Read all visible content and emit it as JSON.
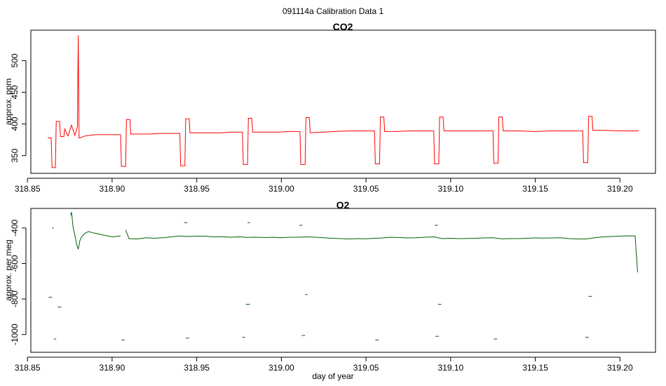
{
  "figure": {
    "title": "091114a   Calibration Data 1"
  },
  "chart_data": [
    {
      "type": "line",
      "title": "CO2",
      "xlabel": "",
      "ylabel": "approx. ppm",
      "xlim": [
        318.852,
        319.221
      ],
      "ylim": [
        322,
        548
      ],
      "xticks": [
        318.85,
        318.9,
        318.95,
        319.0,
        319.05,
        319.1,
        319.15,
        319.2
      ],
      "xtick_labels": [
        "318.85",
        "318.90",
        "318.95",
        "319.00",
        "319.05",
        "319.10",
        "319.15",
        "319.20"
      ],
      "yticks": [
        350,
        400,
        450,
        500
      ],
      "ytick_labels": [
        "350",
        "400",
        "450",
        "500"
      ],
      "grid": false,
      "color": "#ff0000",
      "x": [
        318.862,
        318.864,
        318.8645,
        318.8665,
        318.867,
        318.869,
        318.8695,
        318.8715,
        318.872,
        318.874,
        318.876,
        318.878,
        318.8795,
        318.88,
        318.8805,
        318.881,
        318.884,
        318.89,
        318.896,
        318.902,
        318.905,
        318.9055,
        318.908,
        318.9085,
        318.9105,
        318.911,
        318.916,
        318.922,
        318.928,
        318.934,
        318.94,
        318.9405,
        318.943,
        318.9435,
        318.9455,
        318.946,
        318.952,
        318.958,
        318.964,
        318.97,
        318.977,
        318.9775,
        318.98,
        318.9805,
        318.9825,
        318.983,
        318.99,
        318.998,
        319.005,
        319.011,
        319.0115,
        319.014,
        319.0145,
        319.0165,
        319.017,
        319.024,
        319.032,
        319.04,
        319.048,
        319.055,
        319.0555,
        319.058,
        319.0585,
        319.0605,
        319.061,
        319.068,
        319.076,
        319.084,
        319.09,
        319.0905,
        319.093,
        319.0935,
        319.0955,
        319.096,
        319.104,
        319.112,
        319.12,
        319.125,
        319.1255,
        319.128,
        319.1285,
        319.1305,
        319.131,
        319.14,
        319.15,
        319.16,
        319.17,
        319.178,
        319.1785,
        319.181,
        319.1815,
        319.1835,
        319.184,
        319.19,
        319.2,
        319.211
      ],
      "y": [
        378,
        378,
        331,
        331,
        404,
        404,
        380,
        380,
        392,
        381,
        398,
        382,
        395,
        540,
        378,
        378,
        381,
        383,
        383,
        383,
        383,
        333,
        333,
        407,
        407,
        384,
        384,
        384,
        385,
        385,
        385,
        334,
        334,
        408,
        408,
        386,
        386,
        386,
        386,
        387,
        387,
        336,
        336,
        409,
        409,
        387,
        387,
        387,
        388,
        388,
        336,
        336,
        410,
        410,
        386,
        387,
        388,
        389,
        389,
        389,
        337,
        337,
        411,
        411,
        388,
        388,
        389,
        389,
        389,
        337,
        337,
        411,
        411,
        389,
        389,
        389,
        389,
        389,
        338,
        338,
        411,
        411,
        389,
        389,
        388,
        389,
        389,
        389,
        339,
        339,
        412,
        412,
        390,
        390,
        389,
        389
      ]
    },
    {
      "type": "line",
      "title": "O2",
      "xlabel": "day of year",
      "ylabel": "approx. per meg",
      "xlim": [
        318.852,
        319.221
      ],
      "ylim": [
        -1100,
        -290
      ],
      "xticks": [
        318.85,
        318.9,
        318.95,
        319.0,
        319.05,
        319.1,
        319.15,
        319.2
      ],
      "xtick_labels": [
        "318.85",
        "318.90",
        "318.95",
        "319.00",
        "319.05",
        "319.10",
        "319.15",
        "319.20"
      ],
      "yticks": [
        -400,
        -600,
        -800,
        -1000
      ],
      "ytick_labels": [
        "-400",
        "-600",
        "-800",
        "-1000"
      ],
      "grid": false,
      "color": "#006400",
      "series": [
        {
          "x": [
            318.8755,
            318.876,
            318.877,
            318.878,
            318.879,
            318.88,
            318.881,
            318.882,
            318.884,
            318.886,
            318.888,
            318.89,
            318.895,
            318.9,
            318.905
          ],
          "y": [
            -330,
            -310,
            -400,
            -440,
            -490,
            -520,
            -470,
            -450,
            -430,
            -420,
            -425,
            -430,
            -440,
            -450,
            -445
          ]
        },
        {
          "x": [
            318.908,
            318.91,
            318.915,
            318.92,
            318.925,
            318.93,
            318.935,
            318.94,
            318.945,
            318.95,
            318.955,
            318.96,
            318.965,
            318.97,
            318.975,
            318.98,
            318.985,
            318.99,
            318.995,
            319.0,
            319.005,
            319.01,
            319.015,
            319.02,
            319.025,
            319.03,
            319.035,
            319.04,
            319.045,
            319.05,
            319.055,
            319.06,
            319.065,
            319.07,
            319.075,
            319.08,
            319.085,
            319.09,
            319.095,
            319.1,
            319.105,
            319.11,
            319.115,
            319.12,
            319.125,
            319.13,
            319.135,
            319.14,
            319.145,
            319.15,
            319.155,
            319.16,
            319.165,
            319.17,
            319.175,
            319.18,
            319.185,
            319.19,
            319.195,
            319.2,
            319.205,
            319.209,
            319.2095,
            319.2105
          ],
          "y": [
            -410,
            -460,
            -462,
            -455,
            -458,
            -455,
            -450,
            -445,
            -448,
            -446,
            -446,
            -450,
            -449,
            -452,
            -450,
            -453,
            -452,
            -454,
            -452,
            -455,
            -452,
            -452,
            -450,
            -452,
            -455,
            -458,
            -460,
            -462,
            -460,
            -461,
            -458,
            -456,
            -452,
            -454,
            -456,
            -455,
            -452,
            -450,
            -460,
            -458,
            -460,
            -459,
            -458,
            -456,
            -455,
            -461,
            -460,
            -460,
            -458,
            -456,
            -457,
            -456,
            -455,
            -460,
            -462,
            -462,
            -455,
            -450,
            -448,
            -446,
            -444,
            -445,
            -520,
            -650
          ]
        }
      ],
      "segments": [
        {
          "x": [
            318.8625,
            318.8645
          ],
          "y": [
            -790,
            -790
          ]
        },
        {
          "x": [
            318.8645,
            318.8655
          ],
          "y": [
            -400,
            -400
          ]
        },
        {
          "x": [
            318.8655,
            318.867
          ],
          "y": [
            -1025,
            -1025
          ]
        },
        {
          "x": [
            318.868,
            318.87
          ],
          "y": [
            -845,
            -845
          ]
        },
        {
          "x": [
            318.9055,
            318.9075
          ],
          "y": [
            -1030,
            -1030
          ]
        },
        {
          "x": [
            318.9425,
            318.9445
          ],
          "y": [
            -370,
            -370
          ]
        },
        {
          "x": [
            318.9435,
            318.9455
          ],
          "y": [
            -1020,
            -1020
          ]
        },
        {
          "x": [
            318.977,
            318.9785
          ],
          "y": [
            -1015,
            -1015
          ]
        },
        {
          "x": [
            318.979,
            318.9815
          ],
          "y": [
            -830,
            -830
          ]
        },
        {
          "x": [
            318.98,
            318.9815
          ],
          "y": [
            -370,
            -370
          ]
        },
        {
          "x": [
            319.0105,
            319.0125
          ],
          "y": [
            -385,
            -385
          ]
        },
        {
          "x": [
            319.012,
            319.014
          ],
          "y": [
            -1005,
            -1005
          ]
        },
        {
          "x": [
            319.014,
            319.0155
          ],
          "y": [
            -775,
            -775
          ]
        },
        {
          "x": [
            319.0555,
            319.0575
          ],
          "y": [
            -1030,
            -1030
          ]
        },
        {
          "x": [
            319.0905,
            319.0925
          ],
          "y": [
            -385,
            -385
          ]
        },
        {
          "x": [
            319.091,
            319.093
          ],
          "y": [
            -1010,
            -1010
          ]
        },
        {
          "x": [
            319.0925,
            319.0945
          ],
          "y": [
            -830,
            -830
          ]
        },
        {
          "x": [
            319.1255,
            319.1275
          ],
          "y": [
            -1025,
            -1025
          ]
        },
        {
          "x": [
            319.1795,
            319.1815
          ],
          "y": [
            -1015,
            -1015
          ]
        },
        {
          "x": [
            319.1815,
            319.1835
          ],
          "y": [
            -785,
            -785
          ]
        }
      ]
    }
  ]
}
